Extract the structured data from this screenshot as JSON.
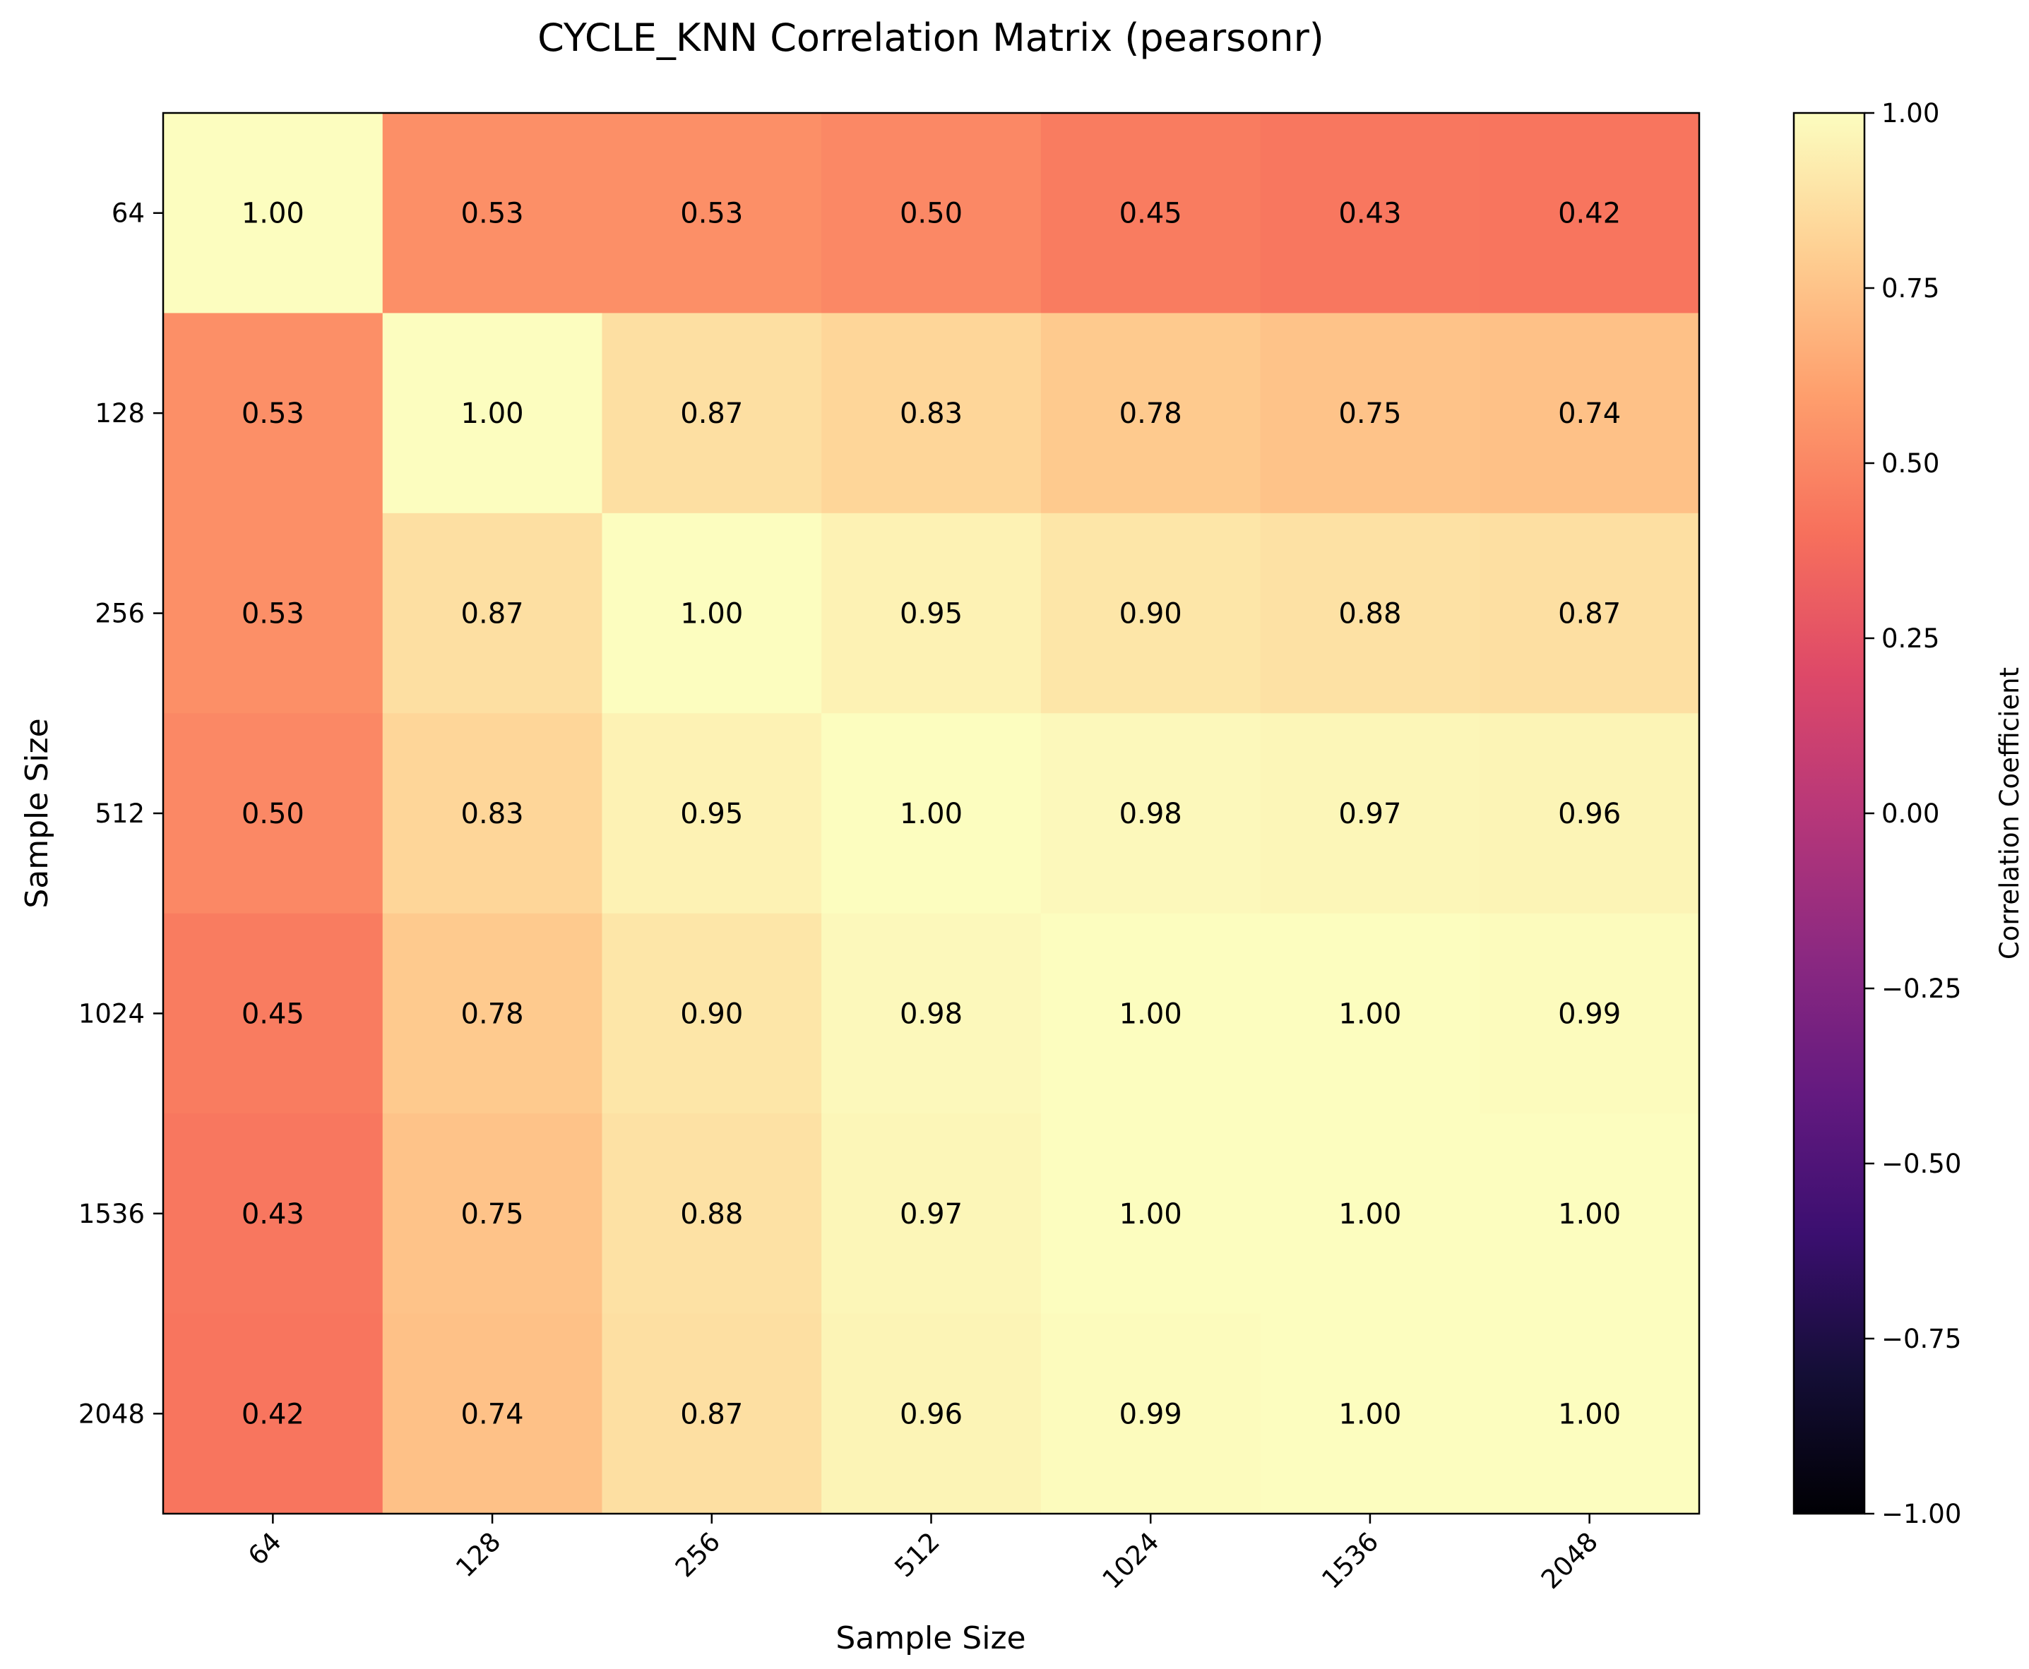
{
  "chart_data": {
    "type": "heatmap",
    "title": "CYCLE_KNN Correlation Matrix (pearsonr)",
    "xlabel": "Sample Size",
    "ylabel": "Sample Size",
    "x_categories": [
      "64",
      "128",
      "256",
      "512",
      "1024",
      "1536",
      "2048"
    ],
    "y_categories": [
      "64",
      "128",
      "256",
      "512",
      "1024",
      "1536",
      "2048"
    ],
    "values": [
      [
        1.0,
        0.53,
        0.53,
        0.5,
        0.45,
        0.43,
        0.42
      ],
      [
        0.53,
        1.0,
        0.87,
        0.83,
        0.78,
        0.75,
        0.74
      ],
      [
        0.53,
        0.87,
        1.0,
        0.95,
        0.9,
        0.88,
        0.87
      ],
      [
        0.5,
        0.83,
        0.95,
        1.0,
        0.98,
        0.97,
        0.96
      ],
      [
        0.45,
        0.78,
        0.9,
        0.98,
        1.0,
        1.0,
        0.99
      ],
      [
        0.43,
        0.75,
        0.88,
        0.97,
        1.0,
        1.0,
        1.0
      ],
      [
        0.42,
        0.74,
        0.87,
        0.96,
        0.99,
        1.0,
        1.0
      ]
    ],
    "value_format": "0.00",
    "colormap": "magma",
    "colorbar": {
      "label": "Correlation Coefficient",
      "range": [
        -1.0,
        1.0
      ],
      "ticks": [
        1.0,
        0.75,
        0.5,
        0.25,
        0.0,
        -0.25,
        -0.5,
        -0.75,
        -1.0
      ],
      "tick_labels": [
        "1.00",
        "0.75",
        "0.50",
        "0.25",
        "0.00",
        "−0.25",
        "−0.50",
        "−0.75",
        "−1.00"
      ]
    },
    "grid": false
  }
}
